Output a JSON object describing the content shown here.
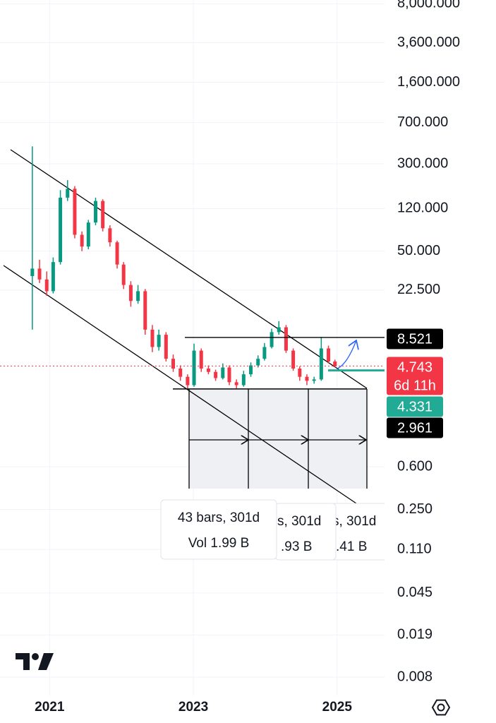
{
  "chart_data": {
    "type": "candlestick",
    "log_scale": true,
    "grid": true,
    "x": [
      2020.76,
      2020.86,
      2020.96,
      2021.05,
      2021.15,
      2021.25,
      2021.35,
      2021.45,
      2021.54,
      2021.64,
      2021.74,
      2021.84,
      2021.94,
      2022.03,
      2022.13,
      2022.23,
      2022.33,
      2022.43,
      2022.52,
      2022.62,
      2022.72,
      2022.82,
      2022.92,
      2023.01,
      2023.11,
      2023.21,
      2023.31,
      2023.41,
      2023.5,
      2023.6,
      2023.7,
      2023.8,
      2023.9,
      2023.99,
      2024.09,
      2024.19,
      2024.29,
      2024.39,
      2024.48,
      2024.58,
      2024.68,
      2024.78,
      2024.88,
      2024.97
    ],
    "open": [
      30,
      35,
      28,
      22,
      40,
      150,
      180,
      70,
      55,
      90,
      140,
      80,
      60,
      38,
      25,
      18,
      22,
      10,
      7,
      9,
      5.5,
      4.5,
      3.8,
      3.2,
      6.5,
      4.5,
      4.2,
      3.7,
      4.6,
      3.4,
      3.2,
      4.0,
      4.8,
      5.5,
      7.0,
      9.5,
      10.5,
      6.5,
      4.5,
      3.8,
      3.5,
      3.6,
      6.8,
      5.2
    ],
    "high": [
      430,
      42,
      33,
      44,
      175,
      215,
      190,
      75,
      95,
      150,
      145,
      85,
      62,
      40,
      27,
      25,
      23,
      11,
      10,
      9.5,
      6,
      4.8,
      4,
      7.5,
      6.8,
      4.8,
      4.4,
      5,
      4.8,
      3.6,
      4.3,
      5.1,
      5.9,
      7.6,
      10.2,
      11.9,
      11,
      6.8,
      4.7,
      4,
      3.8,
      8.6,
      7.2,
      5.4
    ],
    "low": [
      10,
      26,
      20,
      21,
      38,
      140,
      65,
      50,
      52,
      85,
      75,
      55,
      35,
      23,
      16,
      17,
      9,
      6.3,
      6.5,
      5.2,
      4.2,
      3.5,
      3,
      3.1,
      4.2,
      4,
      3.5,
      3.6,
      3.2,
      3,
      3.1,
      3.8,
      4.6,
      5.3,
      6.8,
      9,
      6.2,
      4.3,
      3.5,
      3.2,
      3.3,
      3.5,
      5,
      4.6
    ],
    "close": [
      35,
      28,
      22,
      40,
      150,
      180,
      70,
      55,
      90,
      140,
      80,
      60,
      38,
      25,
      18,
      22,
      10,
      7,
      9,
      5.5,
      4.5,
      3.8,
      3.2,
      6.5,
      4.5,
      4.2,
      3.7,
      4.6,
      3.4,
      3.2,
      4.0,
      4.8,
      5.5,
      7.0,
      9.5,
      10.5,
      6.5,
      4.5,
      3.8,
      3.5,
      3.6,
      6.8,
      5.2,
      4.743
    ],
    "up_color": "#089981",
    "down_color": "#f23645",
    "xlim": [
      2020.31,
      2025.66
    ],
    "xticks": [
      2021,
      2023,
      2025
    ],
    "ylim": [
      0.0055,
      8650
    ],
    "yticks": [
      {
        "value": 8000,
        "label": "8,000.000"
      },
      {
        "value": 3600,
        "label": "3,600.000"
      },
      {
        "value": 1600,
        "label": "1,600.000"
      },
      {
        "value": 700,
        "label": "700.000"
      },
      {
        "value": 300,
        "label": "300.000"
      },
      {
        "value": 120,
        "label": "120.000"
      },
      {
        "value": 50,
        "label": "50.000"
      },
      {
        "value": 22.5,
        "label": "22.500"
      },
      {
        "value": 0.6,
        "label": "0.600"
      },
      {
        "value": 0.25,
        "label": "0.250"
      },
      {
        "value": 0.11,
        "label": "0.110"
      },
      {
        "value": 0.045,
        "label": "0.045"
      },
      {
        "value": 0.019,
        "label": "0.019"
      },
      {
        "value": 0.008,
        "label": "0.008"
      }
    ],
    "levels": [
      8.521,
      4.743,
      4.331,
      2.961
    ],
    "level_colors": [
      "#000000",
      "#f23645",
      "#22ab94",
      "#000000"
    ],
    "countdown": "6d 11h",
    "tooltips": [
      {
        "line1": "s, 301d",
        "line2": ".41 B"
      },
      {
        "line1": "s, 301d",
        "line2": ".93 B"
      },
      {
        "line1": "43 bars, 301d",
        "line2": "Vol 1.99 B"
      }
    ]
  }
}
